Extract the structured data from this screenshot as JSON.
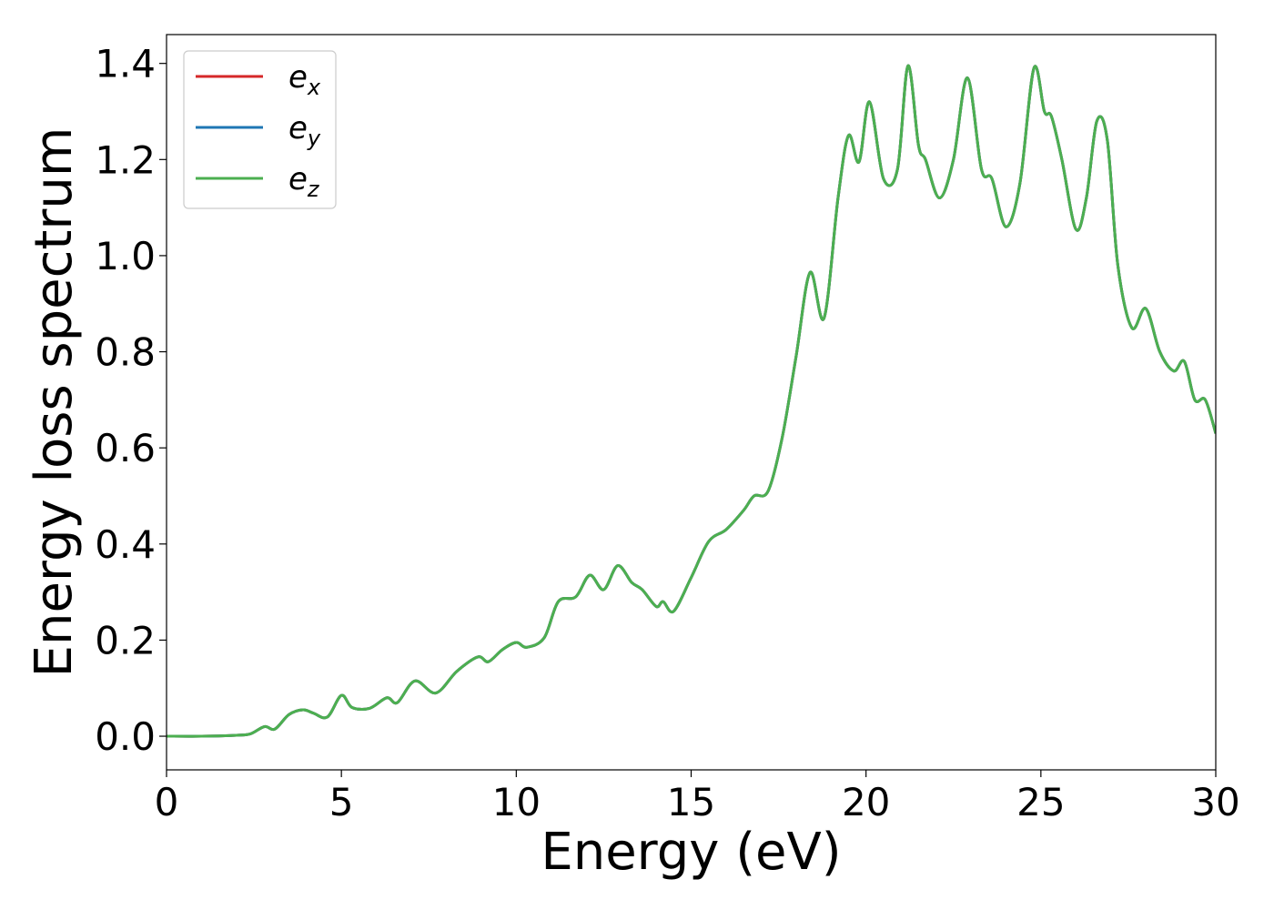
{
  "chart_data": {
    "type": "line",
    "xlabel": "Energy (eV)",
    "ylabel": "Energy loss spectrum",
    "xlim": [
      0,
      30
    ],
    "ylim": [
      -0.07,
      1.46
    ],
    "xticks": [
      "0",
      "5",
      "10",
      "15",
      "20",
      "25",
      "30"
    ],
    "yticks": [
      "0.0",
      "0.2",
      "0.4",
      "0.6",
      "0.8",
      "1.0",
      "1.2",
      "1.4"
    ],
    "grid": false,
    "legend_position": "top-left",
    "legend": [
      {
        "main": "e",
        "sub": "x",
        "color": "#d62728"
      },
      {
        "main": "e",
        "sub": "y",
        "color": "#1f77b4"
      },
      {
        "main": "e",
        "sub": "z",
        "color": "#4caf50"
      }
    ],
    "x": [
      0,
      1,
      2,
      2.4,
      2.8,
      3.1,
      3.5,
      3.9,
      4.2,
      4.6,
      5.0,
      5.3,
      5.8,
      6.3,
      6.6,
      7.1,
      7.7,
      8.3,
      8.9,
      9.2,
      9.6,
      10.0,
      10.3,
      10.8,
      11.2,
      11.7,
      12.1,
      12.5,
      12.9,
      13.3,
      13.6,
      14.0,
      14.2,
      14.5,
      15.0,
      15.5,
      16.0,
      16.5,
      16.8,
      17.2,
      17.6,
      18.0,
      18.4,
      18.8,
      19.2,
      19.5,
      19.8,
      20.1,
      20.5,
      20.9,
      21.2,
      21.5,
      21.7,
      22.1,
      22.5,
      22.9,
      23.3,
      23.6,
      24.0,
      24.4,
      24.8,
      25.1,
      25.3,
      25.6,
      26.0,
      26.3,
      26.6,
      26.9,
      27.2,
      27.6,
      28.0,
      28.4,
      28.8,
      29.1,
      29.4,
      29.7,
      30.0
    ],
    "series": [
      {
        "name": "e_x",
        "color": "#d62728",
        "y": [
          0.0,
          0.0,
          0.002,
          0.005,
          0.02,
          0.015,
          0.045,
          0.055,
          0.048,
          0.04,
          0.085,
          0.06,
          0.058,
          0.08,
          0.07,
          0.115,
          0.09,
          0.135,
          0.165,
          0.155,
          0.18,
          0.195,
          0.185,
          0.205,
          0.28,
          0.29,
          0.335,
          0.305,
          0.355,
          0.32,
          0.305,
          0.27,
          0.28,
          0.26,
          0.33,
          0.405,
          0.43,
          0.47,
          0.5,
          0.51,
          0.62,
          0.79,
          0.965,
          0.87,
          1.12,
          1.25,
          1.195,
          1.32,
          1.16,
          1.18,
          1.395,
          1.23,
          1.2,
          1.12,
          1.2,
          1.37,
          1.18,
          1.16,
          1.06,
          1.15,
          1.39,
          1.3,
          1.29,
          1.2,
          1.055,
          1.12,
          1.28,
          1.24,
          0.98,
          0.85,
          0.89,
          0.8,
          0.76,
          0.78,
          0.7,
          0.7,
          0.63
        ]
      },
      {
        "name": "e_y",
        "color": "#1f77b4",
        "y": [
          0.0,
          0.0,
          0.002,
          0.005,
          0.02,
          0.015,
          0.045,
          0.055,
          0.048,
          0.04,
          0.085,
          0.06,
          0.058,
          0.08,
          0.07,
          0.115,
          0.09,
          0.135,
          0.165,
          0.155,
          0.18,
          0.195,
          0.185,
          0.205,
          0.28,
          0.29,
          0.335,
          0.305,
          0.355,
          0.32,
          0.305,
          0.27,
          0.28,
          0.26,
          0.33,
          0.405,
          0.43,
          0.47,
          0.5,
          0.51,
          0.62,
          0.79,
          0.965,
          0.87,
          1.12,
          1.25,
          1.195,
          1.32,
          1.16,
          1.18,
          1.395,
          1.23,
          1.2,
          1.12,
          1.2,
          1.37,
          1.18,
          1.16,
          1.06,
          1.15,
          1.39,
          1.3,
          1.29,
          1.2,
          1.055,
          1.12,
          1.28,
          1.24,
          0.98,
          0.85,
          0.89,
          0.8,
          0.76,
          0.78,
          0.7,
          0.7,
          0.63
        ]
      },
      {
        "name": "e_z",
        "color": "#4caf50",
        "y": [
          0.0,
          0.0,
          0.002,
          0.005,
          0.02,
          0.015,
          0.045,
          0.055,
          0.048,
          0.04,
          0.085,
          0.06,
          0.058,
          0.08,
          0.07,
          0.115,
          0.09,
          0.135,
          0.165,
          0.155,
          0.18,
          0.195,
          0.185,
          0.205,
          0.28,
          0.29,
          0.335,
          0.305,
          0.355,
          0.32,
          0.305,
          0.27,
          0.28,
          0.26,
          0.33,
          0.405,
          0.43,
          0.47,
          0.5,
          0.51,
          0.62,
          0.79,
          0.965,
          0.87,
          1.12,
          1.25,
          1.195,
          1.32,
          1.16,
          1.18,
          1.395,
          1.23,
          1.2,
          1.12,
          1.2,
          1.37,
          1.18,
          1.16,
          1.06,
          1.15,
          1.39,
          1.3,
          1.29,
          1.2,
          1.055,
          1.12,
          1.28,
          1.24,
          0.98,
          0.85,
          0.89,
          0.8,
          0.76,
          0.78,
          0.7,
          0.7,
          0.63
        ]
      }
    ]
  }
}
